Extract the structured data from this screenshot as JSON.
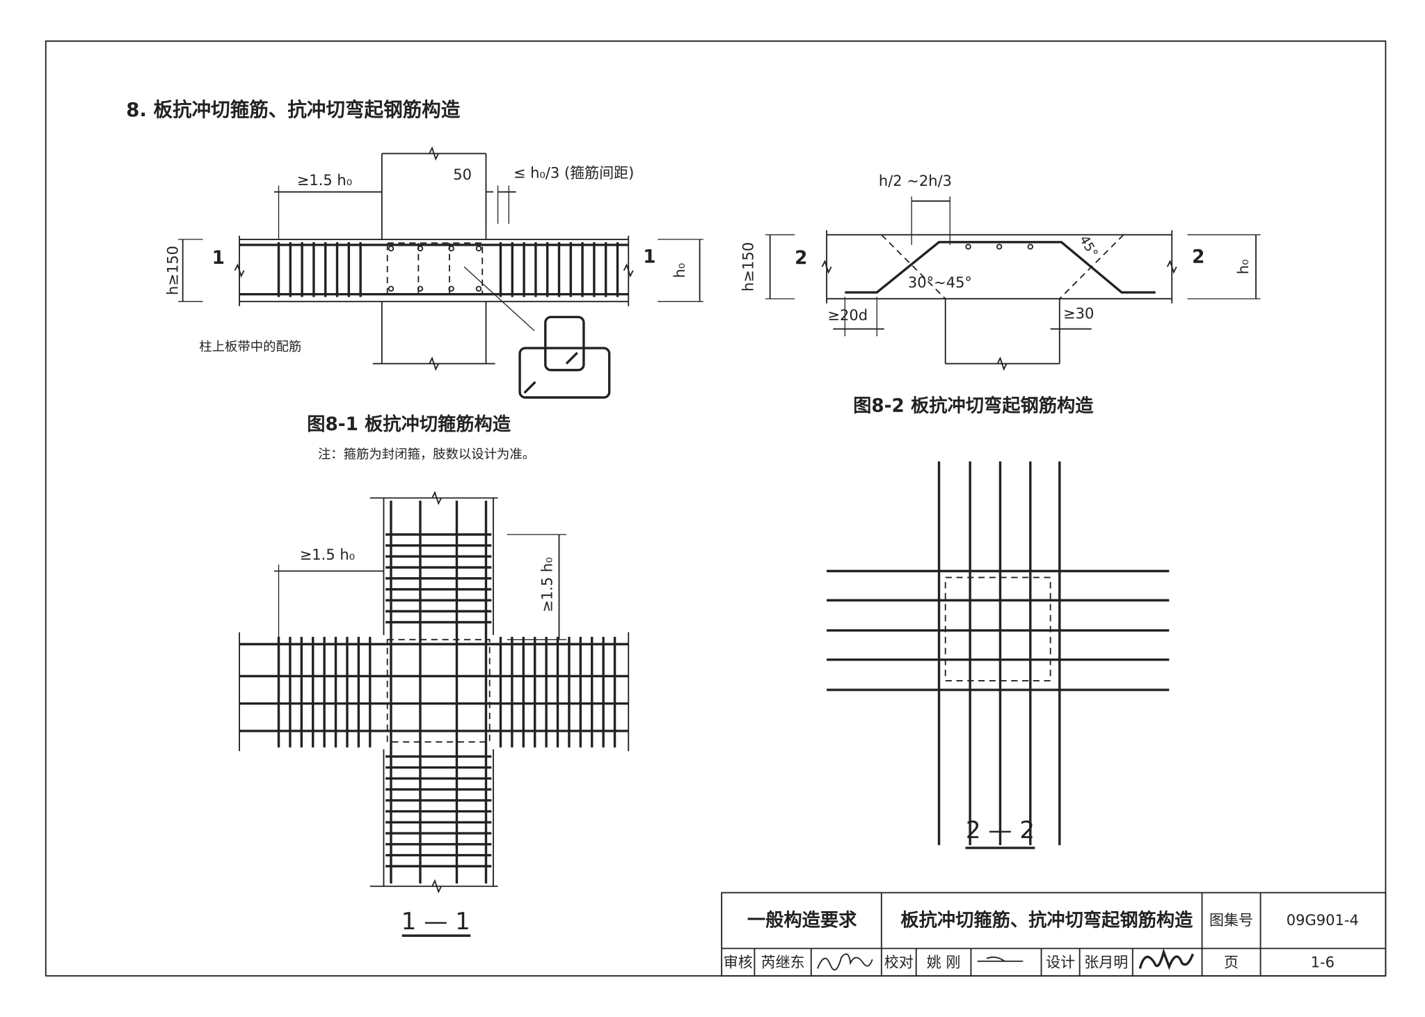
{
  "header": {
    "title": "8. 板抗冲切箍筋、抗冲切弯起钢筋构造"
  },
  "figure_1": {
    "dim_left": "≥1.5 h₀",
    "dim_50": "50",
    "dim_spacing": "≤ h₀/3 (箍筋间距)",
    "dim_h": "h≥150",
    "section_mark_left": "1",
    "section_mark_right": "1",
    "dim_h0": "h₀",
    "rebar_note": "柱上板带中的配筋",
    "caption": "图8-1  板抗冲切箍筋构造",
    "note": "注：箍筋为封闭箍，肢数以设计为准。"
  },
  "figure_2": {
    "dim_top": "h/2 ~2h/3",
    "angle_45": "45°",
    "angle_range": "30°~45°",
    "dim_h": "h≥150",
    "section_mark_left": "2",
    "section_mark_right": "2",
    "dim_h0": "h₀",
    "dim_20d": "≥20d",
    "dim_30": "≥30",
    "caption": "图8-2  板抗冲切弯起钢筋构造"
  },
  "plan_1": {
    "dim_horizontal": "≥1.5 h₀",
    "dim_vertical": "≥1.5 h₀",
    "section_title": "1 — 1"
  },
  "plan_2": {
    "section_title": "2 — 2"
  },
  "title_block": {
    "category": "一般构造要求",
    "drawing_title": "板抗冲切箍筋、抗冲切弯起钢筋构造",
    "atlas_label": "图集号",
    "atlas_number": "09G901-4",
    "review_label": "审核",
    "reviewer": "芮继东",
    "check_label": "校对",
    "checker": "姚 刚",
    "design_label": "设计",
    "designer": "张月明",
    "page_label": "页",
    "page_number": "1-6"
  }
}
